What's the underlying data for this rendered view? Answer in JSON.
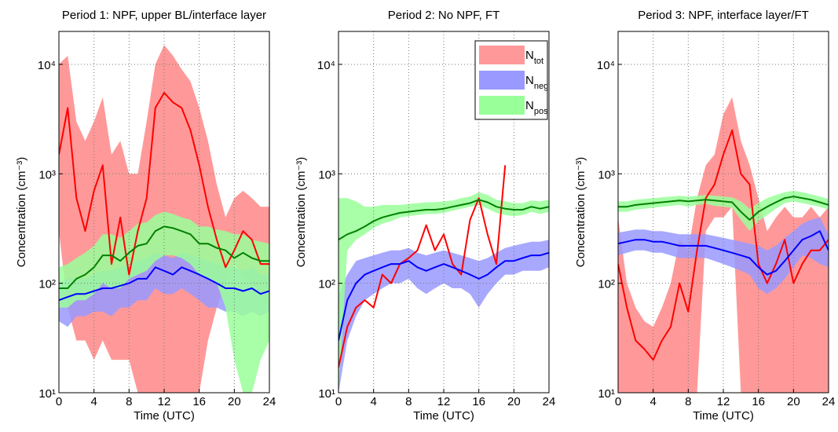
{
  "chart_data": [
    {
      "type": "line-band",
      "title": "Period 1: NPF, upper BL/interface layer",
      "xlabel": "Time (UTC)",
      "ylabel": "Concentration (cm⁻³)",
      "x": [
        0,
        1,
        2,
        3,
        4,
        5,
        6,
        7,
        8,
        9,
        10,
        11,
        12,
        13,
        14,
        15,
        16,
        17,
        18,
        19,
        20,
        21,
        22,
        23,
        24
      ],
      "xlim": [
        0,
        24
      ],
      "xticks": [
        0,
        4,
        8,
        12,
        16,
        20,
        24
      ],
      "ylim": [
        10,
        20000
      ],
      "log_y": true,
      "grid": true,
      "yticks": [
        {
          "value": 10,
          "label": "10¹"
        },
        {
          "value": 100,
          "label": "10²"
        },
        {
          "value": 1000,
          "label": "10³"
        },
        {
          "value": 10000,
          "label": "10⁴"
        }
      ],
      "series": [
        {
          "name": "N_tot",
          "color": "#ff0000",
          "band_color": "#ff9999",
          "values": [
            1500,
            4000,
            600,
            300,
            700,
            1200,
            150,
            400,
            120,
            300,
            600,
            4000,
            5500,
            4500,
            4000,
            2500,
            1200,
            500,
            250,
            140,
            200,
            300,
            250,
            150,
            150
          ],
          "lower": [
            300,
            60,
            30,
            30,
            20,
            30,
            20,
            20,
            20,
            10,
            10,
            10,
            10,
            10,
            10,
            10,
            10,
            30,
            60,
            100,
            150,
            120,
            100,
            80,
            60
          ],
          "upper": [
            10000,
            12000,
            3000,
            2000,
            3000,
            5000,
            1500,
            2000,
            1000,
            1000,
            3000,
            10000,
            15000,
            12000,
            9000,
            7000,
            4000,
            2000,
            800,
            400,
            600,
            700,
            600,
            500,
            500
          ]
        },
        {
          "name": "N_neg",
          "color": "#0000ff",
          "band_color": "#9999ff",
          "values": [
            70,
            75,
            80,
            80,
            85,
            90,
            90,
            95,
            100,
            110,
            110,
            140,
            130,
            120,
            140,
            130,
            120,
            110,
            100,
            90,
            90,
            85,
            90,
            80,
            85
          ],
          "lower": [
            45,
            40,
            50,
            50,
            55,
            55,
            50,
            60,
            60,
            70,
            70,
            90,
            80,
            80,
            90,
            80,
            70,
            60,
            60,
            55,
            55,
            50,
            55,
            50,
            55
          ],
          "upper": [
            100,
            110,
            110,
            110,
            120,
            130,
            130,
            140,
            150,
            160,
            170,
            190,
            180,
            170,
            190,
            180,
            170,
            160,
            150,
            140,
            140,
            130,
            140,
            120,
            120
          ]
        },
        {
          "name": "N_pos",
          "color": "#008000",
          "band_color": "#99ff99",
          "values": [
            90,
            90,
            110,
            120,
            140,
            180,
            180,
            160,
            190,
            220,
            230,
            300,
            330,
            320,
            300,
            280,
            230,
            230,
            210,
            200,
            170,
            190,
            170,
            160,
            160
          ],
          "lower": [
            60,
            60,
            70,
            70,
            80,
            100,
            90,
            90,
            110,
            120,
            130,
            160,
            180,
            180,
            170,
            150,
            120,
            110,
            100,
            60,
            20,
            10,
            10,
            20,
            30
          ],
          "upper": [
            140,
            150,
            170,
            190,
            220,
            280,
            280,
            260,
            300,
            350,
            360,
            420,
            450,
            430,
            400,
            380,
            330,
            330,
            310,
            300,
            280,
            280,
            250,
            240,
            230
          ]
        }
      ]
    },
    {
      "type": "line-band",
      "title": "Period 2: No NPF, FT",
      "xlabel": "Time (UTC)",
      "ylabel": "Concentration (cm⁻³)",
      "x": [
        0,
        1,
        2,
        3,
        4,
        5,
        6,
        7,
        8,
        9,
        10,
        11,
        12,
        13,
        14,
        15,
        16,
        17,
        18,
        19,
        20,
        21,
        22,
        23,
        24
      ],
      "xlim": [
        0,
        24
      ],
      "xticks": [
        0,
        4,
        8,
        12,
        16,
        20,
        24
      ],
      "ylim": [
        10,
        20000
      ],
      "log_y": true,
      "grid": true,
      "legend": "upper right",
      "yticks": [
        {
          "value": 10,
          "label": "10¹"
        },
        {
          "value": 100,
          "label": "10²"
        },
        {
          "value": 1000,
          "label": "10³"
        },
        {
          "value": 10000,
          "label": "10⁴"
        }
      ],
      "series": [
        {
          "name": "N_tot",
          "color": "#ff0000",
          "band_color": "#ff9999",
          "values": [
            17,
            40,
            60,
            70,
            60,
            120,
            100,
            150,
            170,
            200,
            340,
            200,
            280,
            150,
            120,
            380,
            600,
            280,
            150,
            1200,
            null,
            null,
            null,
            null,
            null
          ]
        },
        {
          "name": "N_neg",
          "color": "#0000ff",
          "band_color": "#9999ff",
          "values": [
            30,
            70,
            100,
            120,
            130,
            140,
            150,
            150,
            160,
            140,
            130,
            140,
            150,
            140,
            130,
            120,
            110,
            120,
            140,
            160,
            160,
            170,
            180,
            180,
            190
          ],
          "lower": [
            10,
            30,
            50,
            70,
            80,
            90,
            100,
            100,
            110,
            90,
            80,
            90,
            100,
            90,
            90,
            80,
            60,
            80,
            100,
            120,
            120,
            130,
            130,
            130,
            140
          ],
          "upper": [
            80,
            120,
            160,
            170,
            180,
            190,
            200,
            200,
            210,
            190,
            180,
            190,
            200,
            190,
            180,
            170,
            160,
            170,
            190,
            210,
            220,
            230,
            240,
            240,
            250
          ]
        },
        {
          "name": "N_pos",
          "color": "#008000",
          "band_color": "#99ff99",
          "values": [
            250,
            280,
            300,
            330,
            370,
            400,
            420,
            440,
            450,
            460,
            470,
            470,
            480,
            500,
            520,
            540,
            580,
            550,
            500,
            480,
            470,
            470,
            500,
            480,
            500
          ],
          "lower": [
            10,
            200,
            250,
            280,
            320,
            350,
            370,
            400,
            410,
            420,
            430,
            430,
            440,
            460,
            480,
            500,
            520,
            480,
            440,
            420,
            410,
            420,
            450,
            430,
            450
          ],
          "upper": [
            600,
            600,
            560,
            500,
            500,
            520,
            520,
            520,
            530,
            540,
            550,
            550,
            560,
            570,
            600,
            620,
            680,
            640,
            580,
            560,
            540,
            540,
            570,
            560,
            580
          ]
        }
      ]
    },
    {
      "type": "line-band",
      "title": "Period 3: NPF, interface layer/FT",
      "xlabel": "Time (UTC)",
      "ylabel": "Concentration (cm⁻³)",
      "x": [
        0,
        1,
        2,
        3,
        4,
        5,
        6,
        7,
        8,
        9,
        10,
        11,
        12,
        13,
        14,
        15,
        16,
        17,
        18,
        19,
        20,
        21,
        22,
        23,
        24
      ],
      "xlim": [
        0,
        24
      ],
      "xticks": [
        0,
        4,
        8,
        12,
        16,
        20,
        24
      ],
      "ylim": [
        10,
        20000
      ],
      "log_y": true,
      "grid": true,
      "yticks": [
        {
          "value": 10,
          "label": "10¹"
        },
        {
          "value": 100,
          "label": "10²"
        },
        {
          "value": 1000,
          "label": "10³"
        },
        {
          "value": 10000,
          "label": "10⁴"
        }
      ],
      "series": [
        {
          "name": "N_tot",
          "color": "#ff0000",
          "band_color": "#ff9999",
          "values": [
            150,
            60,
            30,
            25,
            20,
            30,
            40,
            100,
            55,
            200,
            600,
            800,
            1500,
            2500,
            1000,
            800,
            150,
            100,
            150,
            250,
            100,
            150,
            200,
            200,
            250
          ],
          "lower": [
            10,
            10,
            10,
            10,
            10,
            10,
            10,
            10,
            10,
            10,
            300,
            400,
            400,
            500,
            10,
            10,
            10,
            10,
            10,
            10,
            10,
            10,
            10,
            10,
            10
          ],
          "upper": [
            400,
            100,
            60,
            45,
            40,
            60,
            100,
            250,
            200,
            600,
            1200,
            1500,
            3500,
            5000,
            2000,
            1200,
            600,
            300,
            400,
            500,
            400,
            400,
            500,
            400,
            500
          ]
        },
        {
          "name": "N_neg",
          "color": "#0000ff",
          "band_color": "#9999ff",
          "values": [
            230,
            240,
            250,
            250,
            240,
            240,
            230,
            220,
            220,
            220,
            220,
            210,
            200,
            190,
            180,
            170,
            140,
            120,
            130,
            160,
            200,
            250,
            270,
            300,
            200
          ],
          "lower": [
            180,
            190,
            200,
            200,
            190,
            190,
            180,
            170,
            170,
            170,
            170,
            160,
            150,
            140,
            130,
            120,
            90,
            80,
            90,
            110,
            140,
            180,
            170,
            150,
            140
          ],
          "upper": [
            290,
            300,
            310,
            310,
            300,
            300,
            290,
            280,
            280,
            280,
            280,
            270,
            260,
            250,
            240,
            230,
            220,
            200,
            220,
            260,
            300,
            350,
            380,
            400,
            280
          ]
        },
        {
          "name": "N_pos",
          "color": "#008000",
          "band_color": "#99ff99",
          "values": [
            500,
            500,
            520,
            530,
            540,
            550,
            560,
            570,
            560,
            570,
            580,
            570,
            560,
            550,
            450,
            380,
            450,
            500,
            550,
            600,
            620,
            600,
            580,
            550,
            520
          ],
          "lower": [
            450,
            450,
            470,
            480,
            490,
            500,
            510,
            520,
            500,
            520,
            530,
            510,
            500,
            490,
            380,
            300,
            370,
            420,
            480,
            540,
            560,
            540,
            520,
            500,
            470
          ],
          "upper": [
            560,
            560,
            580,
            590,
            600,
            610,
            620,
            630,
            620,
            630,
            640,
            630,
            620,
            610,
            560,
            480,
            540,
            600,
            640,
            680,
            700,
            680,
            650,
            620,
            590
          ]
        }
      ]
    }
  ]
}
